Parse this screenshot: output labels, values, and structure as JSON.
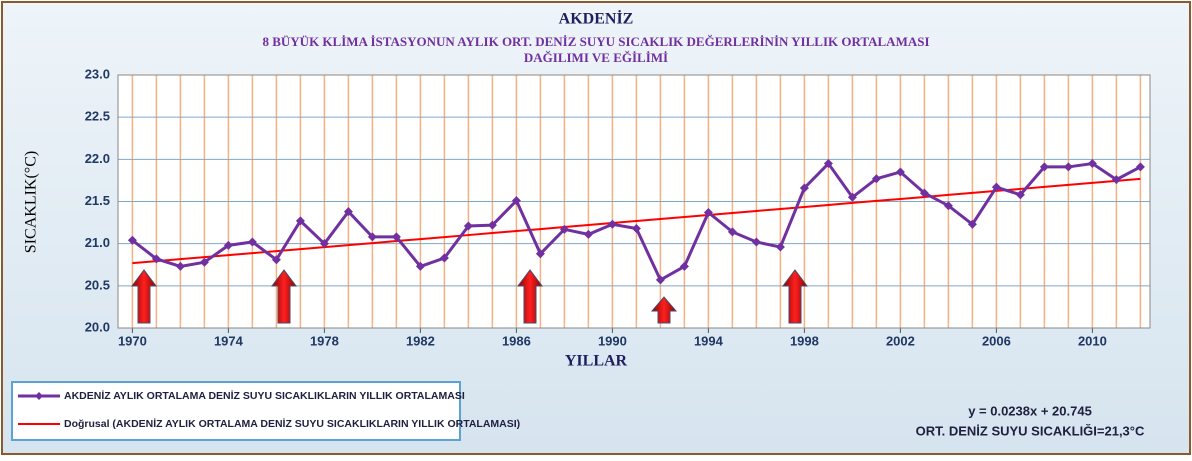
{
  "chart_data": {
    "type": "line",
    "title": "AKDENİZ",
    "subtitle": [
      "8 BÜYÜK KLİMA İSTASYONUN AYLIK ORT. DENİZ SUYU SICAKLIK DEĞERLERİNİN YILLIK ORTALAMASI",
      "DAĞILIMI VE EĞİLİMİ"
    ],
    "x_label": "YILLAR",
    "y_label": "SICAKLIK(°C)",
    "x": [
      1970,
      1971,
      1972,
      1973,
      1974,
      1975,
      1976,
      1977,
      1978,
      1979,
      1980,
      1981,
      1982,
      1983,
      1984,
      1985,
      1986,
      1987,
      1988,
      1989,
      1990,
      1991,
      1992,
      1993,
      1994,
      1995,
      1996,
      1997,
      1998,
      1999,
      2000,
      2001,
      2002,
      2003,
      2004,
      2005,
      2006,
      2007,
      2008,
      2009,
      2010,
      2011,
      2012
    ],
    "series": [
      {
        "name": "AKDENİZ  AYLIK ORTALAMA DENİZ SUYU SICAKLIKLARIN YILLIK ORTALAMASI",
        "color": "#7030a0",
        "values": [
          21.04,
          20.82,
          20.73,
          20.78,
          20.98,
          21.02,
          20.81,
          21.27,
          21.0,
          21.38,
          21.08,
          21.08,
          20.73,
          20.83,
          21.21,
          21.22,
          21.51,
          20.88,
          21.17,
          21.11,
          21.23,
          21.18,
          20.57,
          20.73,
          21.37,
          21.14,
          21.02,
          20.96,
          21.66,
          21.95,
          21.55,
          21.77,
          21.85,
          21.6,
          21.45,
          21.23,
          21.67,
          21.58,
          21.91,
          21.91,
          21.95,
          21.76,
          21.91
        ]
      },
      {
        "name": "Doğrusal (AKDENİZ  AYLIK ORTALAMA DENİZ SUYU SICAKLIKLARIN YILLIK ORTALAMASI)",
        "color": "#ff0000",
        "values": [
          20.769,
          20.793,
          20.816,
          20.84,
          20.864,
          20.888,
          20.912,
          20.935,
          20.959,
          20.983,
          21.007,
          21.031,
          21.054,
          21.078,
          21.102,
          21.126,
          21.15,
          21.173,
          21.197,
          21.221,
          21.245,
          21.269,
          21.292,
          21.316,
          21.34,
          21.364,
          21.388,
          21.411,
          21.435,
          21.459,
          21.483,
          21.507,
          21.53,
          21.554,
          21.578,
          21.602,
          21.626,
          21.649,
          21.673,
          21.697,
          21.721,
          21.745,
          21.768
        ]
      }
    ],
    "xlim": [
      1969.4,
      2012.4
    ],
    "xticks": [
      1970,
      1974,
      1978,
      1982,
      1986,
      1990,
      1994,
      1998,
      2002,
      2006,
      2010
    ],
    "ylim": [
      20,
      23
    ],
    "yticks": [
      {
        "value": 20,
        "label": "20.0"
      },
      {
        "value": 20.5,
        "label": "20.5"
      },
      {
        "value": 21,
        "label": "21.0"
      },
      {
        "value": 21.5,
        "label": "21.5"
      },
      {
        "value": 22,
        "label": "22.0"
      },
      {
        "value": 22.5,
        "label": "22.5"
      },
      {
        "value": 23,
        "label": "23.0"
      }
    ],
    "grid": true,
    "annotations": [
      "y = 0.0238x + 20.745",
      "ORT. DENİZ SUYU SICAKLIĞI=21,3°C"
    ]
  }
}
